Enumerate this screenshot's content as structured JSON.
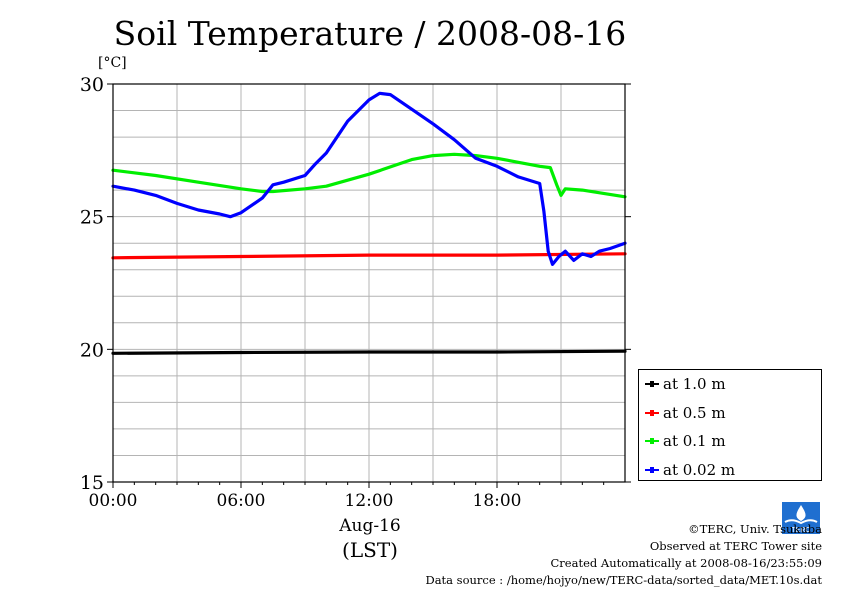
{
  "title": "Soil Temperature / 2008-08-16",
  "unit_label": "[°C]",
  "x_axis": {
    "date_label": "Aug-16",
    "zone_label": "(LST)"
  },
  "credits": [
    "©TERC, Univ. Tsukuba",
    "Observed at TERC Tower site",
    "Created Automatically at 2008-08-16/23:55:09",
    "Data source : /home/hojyo/new/TERC-data/sorted_data/MET.10s.dat"
  ],
  "logo": {
    "icon": "terc-logo-icon",
    "text": "TERC"
  },
  "chart_data": {
    "type": "line",
    "title": "Soil Temperature / 2008-08-16",
    "xlabel": "",
    "ylabel": "[°C]",
    "x_unit": "hour of day (LST)",
    "xlim": [
      0,
      24
    ],
    "ylim": [
      15,
      30
    ],
    "x_ticks": [
      0,
      6,
      12,
      18
    ],
    "x_tick_labels": [
      "00:00",
      "06:00",
      "12:00",
      "18:00"
    ],
    "y_ticks": [
      15,
      20,
      25,
      30
    ],
    "y_tick_labels": [
      "15",
      "20",
      "25",
      "30"
    ],
    "grid": true,
    "legend_position": "bottom-right outside",
    "series": [
      {
        "name": "at 1.0 m",
        "color": "#000000",
        "x": [
          0,
          6,
          12,
          18,
          24
        ],
        "y": [
          19.85,
          19.88,
          19.9,
          19.9,
          19.93
        ]
      },
      {
        "name": "at 0.5 m",
        "color": "#ff0000",
        "x": [
          0,
          6,
          12,
          18,
          24
        ],
        "y": [
          23.45,
          23.5,
          23.55,
          23.55,
          23.6
        ]
      },
      {
        "name": "at 0.1 m",
        "color": "#00ee00",
        "x": [
          0,
          2,
          4,
          6,
          7,
          7.5,
          9,
          10,
          12,
          14,
          15,
          16,
          17,
          18,
          19,
          20,
          20.5,
          20.8,
          21,
          21.2,
          22,
          24
        ],
        "y": [
          26.75,
          26.55,
          26.3,
          26.05,
          25.95,
          25.95,
          26.05,
          26.15,
          26.6,
          27.15,
          27.3,
          27.35,
          27.3,
          27.2,
          27.05,
          26.9,
          26.85,
          26.2,
          25.8,
          26.05,
          26.0,
          25.75
        ]
      },
      {
        "name": "at 0.02 m",
        "color": "#0000ff",
        "x": [
          0,
          1,
          2,
          3,
          4,
          5,
          5.5,
          6,
          7,
          7.5,
          8,
          9,
          9.5,
          10,
          11,
          12,
          12.5,
          13,
          14,
          15,
          16,
          17,
          18,
          19,
          20,
          20.2,
          20.4,
          20.6,
          20.9,
          21.2,
          21.6,
          22,
          22.4,
          22.8,
          23.3,
          24
        ],
        "y": [
          26.15,
          26.0,
          25.8,
          25.5,
          25.25,
          25.1,
          25.0,
          25.15,
          25.7,
          26.2,
          26.3,
          26.55,
          27.0,
          27.4,
          28.6,
          29.4,
          29.65,
          29.6,
          29.05,
          28.5,
          27.9,
          27.2,
          26.9,
          26.5,
          26.25,
          25.2,
          23.7,
          23.2,
          23.5,
          23.7,
          23.35,
          23.6,
          23.5,
          23.7,
          23.8,
          24.0
        ]
      }
    ]
  }
}
